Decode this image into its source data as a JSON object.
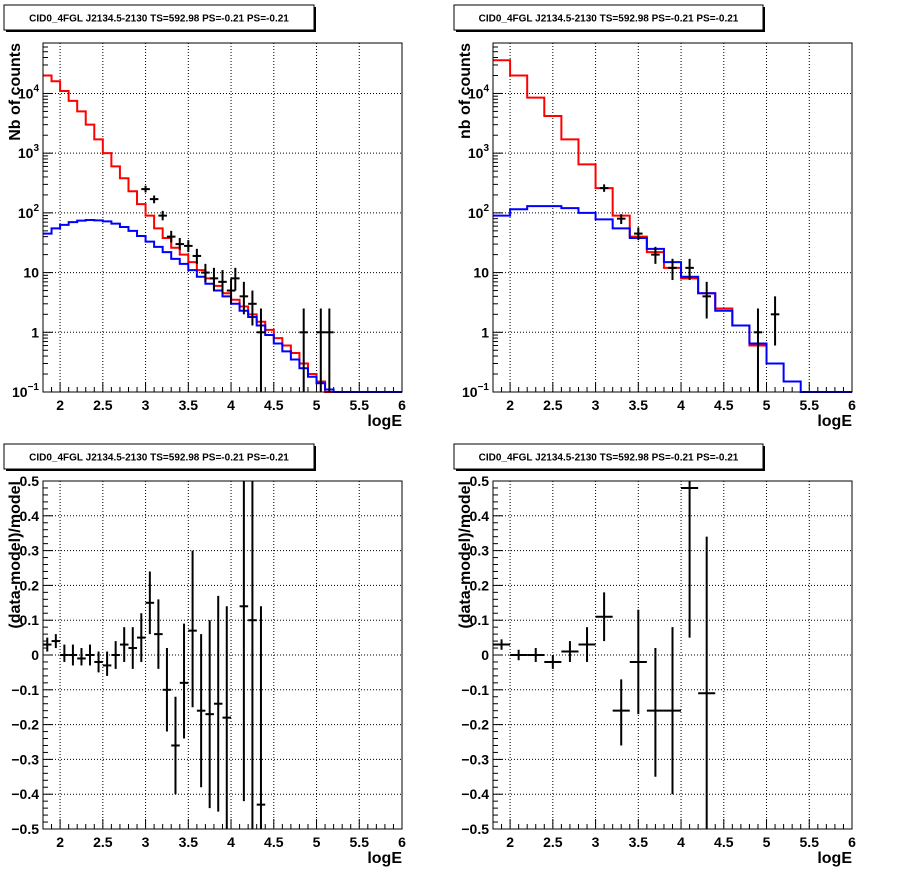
{
  "chart_data": [
    {
      "type": "line",
      "id": "counts-left",
      "title": "CID0_4FGL J2134.5-2130 TS=592.98 PS=-0.21 PS=-0.21",
      "xlabel": "logE",
      "ylabel": "Nb of counts",
      "xlim": [
        1.8,
        6
      ],
      "ylim": [
        0.1,
        70000
      ],
      "yscale": "log",
      "grid": true,
      "xticks": [
        {
          "v": 2,
          "label": "2"
        },
        {
          "v": 2.5,
          "label": "2.5"
        },
        {
          "v": 3,
          "label": "3"
        },
        {
          "v": 3.5,
          "label": "3.5"
        },
        {
          "v": 4,
          "label": "4"
        },
        {
          "v": 4.5,
          "label": "4.5"
        },
        {
          "v": 5,
          "label": "5"
        },
        {
          "v": 5.5,
          "label": "5.5"
        },
        {
          "v": 6,
          "label": "6"
        }
      ],
      "yticks": [
        {
          "v": 0.1,
          "label": "10",
          "sup": "−1"
        },
        {
          "v": 1,
          "label": "1"
        },
        {
          "v": 10,
          "label": "10"
        },
        {
          "v": 100,
          "label": "10",
          "sup": "2"
        },
        {
          "v": 1000,
          "label": "10",
          "sup": "3"
        },
        {
          "v": 10000,
          "label": "10",
          "sup": "4"
        }
      ],
      "series": [
        {
          "kind": "step",
          "color": "#ff0000",
          "edges": [
            1.8,
            1.9,
            2.0,
            2.1,
            2.2,
            2.3,
            2.4,
            2.5,
            2.6,
            2.7,
            2.8,
            2.9,
            3.0,
            3.1,
            3.2,
            3.3,
            3.4,
            3.5,
            3.6,
            3.7,
            3.8,
            3.9,
            4.0,
            4.1,
            4.2,
            4.3,
            4.4,
            4.5,
            4.6,
            4.7,
            4.8,
            4.9,
            5.0,
            5.1,
            5.2
          ],
          "values": [
            20000,
            16000,
            11000,
            7500,
            5000,
            3000,
            1700,
            1000,
            600,
            380,
            230,
            140,
            90,
            55,
            38,
            26,
            20,
            15,
            11,
            8,
            6,
            4.5,
            3.5,
            2.7,
            2,
            1.5,
            1.1,
            0.8,
            0.6,
            0.45,
            0.3,
            0.2,
            0.15,
            0.1
          ]
        },
        {
          "kind": "step",
          "color": "#0000ff",
          "edges": [
            1.8,
            1.9,
            2.0,
            2.1,
            2.2,
            2.3,
            2.4,
            2.5,
            2.6,
            2.7,
            2.8,
            2.9,
            3.0,
            3.1,
            3.2,
            3.3,
            3.4,
            3.5,
            3.6,
            3.7,
            3.8,
            3.9,
            4.0,
            4.1,
            4.2,
            4.3,
            4.4,
            4.5,
            4.6,
            4.7,
            4.8,
            4.9,
            5.0,
            5.1,
            5.2,
            5.3,
            6.0
          ],
          "values": [
            45,
            55,
            63,
            70,
            74,
            76,
            75,
            72,
            66,
            58,
            50,
            41,
            33,
            27,
            22,
            17,
            14,
            11,
            8.5,
            6.5,
            5,
            4,
            3,
            2.3,
            1.8,
            1.3,
            0.9,
            0.65,
            0.48,
            0.35,
            0.25,
            0.18,
            0.14,
            0.11,
            0.1,
            0.1
          ]
        }
      ],
      "points": [
        {
          "x": 3.0,
          "y": 250,
          "lo": 220,
          "hi": 285
        },
        {
          "x": 3.1,
          "y": 170,
          "lo": 145,
          "hi": 195
        },
        {
          "x": 3.2,
          "y": 90,
          "lo": 75,
          "hi": 108
        },
        {
          "x": 3.3,
          "y": 40,
          "lo": 32,
          "hi": 50
        },
        {
          "x": 3.4,
          "y": 30,
          "lo": 24,
          "hi": 38
        },
        {
          "x": 3.5,
          "y": 28,
          "lo": 22,
          "hi": 35
        },
        {
          "x": 3.6,
          "y": 19,
          "lo": 14,
          "hi": 25
        },
        {
          "x": 3.7,
          "y": 10,
          "lo": 7,
          "hi": 14
        },
        {
          "x": 3.8,
          "y": 8,
          "lo": 5,
          "hi": 12
        },
        {
          "x": 3.9,
          "y": 7,
          "lo": 4.5,
          "hi": 11
        },
        {
          "x": 4.0,
          "y": 5,
          "lo": 3,
          "hi": 8
        },
        {
          "x": 4.05,
          "y": 8,
          "lo": 5,
          "hi": 12
        },
        {
          "x": 4.15,
          "y": 4,
          "lo": 2,
          "hi": 7
        },
        {
          "x": 4.25,
          "y": 3,
          "lo": 1.3,
          "hi": 5
        },
        {
          "x": 4.35,
          "y": 1,
          "lo": 0.1,
          "hi": 2.5
        },
        {
          "x": 4.85,
          "y": 1,
          "lo": 0.1,
          "hi": 2.5
        },
        {
          "x": 5.05,
          "y": 1,
          "lo": 0.1,
          "hi": 2.5
        },
        {
          "x": 5.15,
          "y": 1,
          "lo": 0.1,
          "hi": 2.5
        }
      ]
    },
    {
      "type": "line",
      "id": "counts-right",
      "title": "CID0_4FGL J2134.5-2130 TS=592.98 PS=-0.21 PS=-0.21",
      "xlabel": "logE",
      "ylabel": "nb of counts",
      "xlim": [
        1.8,
        6
      ],
      "ylim": [
        0.1,
        70000
      ],
      "yscale": "log",
      "grid": true,
      "xticks": [
        {
          "v": 2,
          "label": "2"
        },
        {
          "v": 2.5,
          "label": "2.5"
        },
        {
          "v": 3,
          "label": "3"
        },
        {
          "v": 3.5,
          "label": "3.5"
        },
        {
          "v": 4,
          "label": "4"
        },
        {
          "v": 4.5,
          "label": "4.5"
        },
        {
          "v": 5,
          "label": "5"
        },
        {
          "v": 5.5,
          "label": "5.5"
        },
        {
          "v": 6,
          "label": "6"
        }
      ],
      "yticks": [
        {
          "v": 0.1,
          "label": "10",
          "sup": "−1"
        },
        {
          "v": 1,
          "label": "1"
        },
        {
          "v": 10,
          "label": "10"
        },
        {
          "v": 100,
          "label": "10",
          "sup": "2"
        },
        {
          "v": 1000,
          "label": "10",
          "sup": "3"
        },
        {
          "v": 10000,
          "label": "10",
          "sup": "4"
        }
      ],
      "series": [
        {
          "kind": "step",
          "color": "#ff0000",
          "edges": [
            1.8,
            2.0,
            2.2,
            2.4,
            2.6,
            2.8,
            3.0,
            3.2,
            3.4,
            3.6,
            3.8,
            4.0,
            4.2,
            4.4,
            4.6,
            4.8,
            5.0
          ],
          "values": [
            36000,
            20000,
            8500,
            4200,
            1700,
            650,
            260,
            90,
            40,
            22,
            12,
            8,
            4.5,
            2.5,
            1.3,
            0.6
          ]
        },
        {
          "kind": "step",
          "color": "#0000ff",
          "edges": [
            1.8,
            2.0,
            2.2,
            2.4,
            2.6,
            2.8,
            3.0,
            3.2,
            3.4,
            3.6,
            3.8,
            4.0,
            4.2,
            4.4,
            4.6,
            4.8,
            5.0,
            5.2,
            5.4,
            6.0
          ],
          "values": [
            90,
            115,
            130,
            130,
            120,
            100,
            78,
            55,
            38,
            25,
            15,
            8.5,
            4.5,
            2.3,
            1.3,
            0.65,
            0.3,
            0.15,
            0.1
          ]
        }
      ],
      "points": [
        {
          "x": 3.1,
          "y": 260,
          "lo": 225,
          "hi": 300
        },
        {
          "x": 3.3,
          "y": 80,
          "lo": 65,
          "hi": 95
        },
        {
          "x": 3.5,
          "y": 45,
          "lo": 35,
          "hi": 57
        },
        {
          "x": 3.7,
          "y": 20,
          "lo": 14,
          "hi": 27
        },
        {
          "x": 3.9,
          "y": 12,
          "lo": 7.5,
          "hi": 17
        },
        {
          "x": 4.1,
          "y": 12,
          "lo": 7.5,
          "hi": 17
        },
        {
          "x": 4.3,
          "y": 4,
          "lo": 1.7,
          "hi": 7
        },
        {
          "x": 4.9,
          "y": 1,
          "lo": 0.1,
          "hi": 2.5
        },
        {
          "x": 5.1,
          "y": 2,
          "lo": 0.6,
          "hi": 4
        }
      ]
    },
    {
      "type": "scatter",
      "id": "residuals-left",
      "title": "CID0_4FGL J2134.5-2130 TS=592.98 PS=-0.21 PS=-0.21",
      "xlabel": "logE",
      "ylabel": "(data-model)/model",
      "xlim": [
        1.8,
        6
      ],
      "ylim": [
        -0.5,
        0.5
      ],
      "grid": true,
      "xticks": [
        {
          "v": 2,
          "label": "2"
        },
        {
          "v": 2.5,
          "label": "2.5"
        },
        {
          "v": 3,
          "label": "3"
        },
        {
          "v": 3.5,
          "label": "3.5"
        },
        {
          "v": 4,
          "label": "4"
        },
        {
          "v": 4.5,
          "label": "4.5"
        },
        {
          "v": 5,
          "label": "5"
        },
        {
          "v": 5.5,
          "label": "5.5"
        },
        {
          "v": 6,
          "label": "6"
        }
      ],
      "yticks": [
        {
          "v": -0.5,
          "label": "−0.5"
        },
        {
          "v": -0.4,
          "label": "−0.4"
        },
        {
          "v": -0.3,
          "label": "−0.3"
        },
        {
          "v": -0.2,
          "label": "−0.2"
        },
        {
          "v": -0.1,
          "label": "−0.1"
        },
        {
          "v": 0,
          "label": "0"
        },
        {
          "v": 0.1,
          "label": "0.1"
        },
        {
          "v": 0.2,
          "label": "0.2"
        },
        {
          "v": 0.3,
          "label": "0.3"
        },
        {
          "v": 0.4,
          "label": "0.4"
        },
        {
          "v": 0.5,
          "label": "0.5"
        }
      ],
      "xerr": 0.05,
      "points": [
        {
          "x": 1.85,
          "y": 0.03,
          "lo": 0.01,
          "hi": 0.05
        },
        {
          "x": 1.95,
          "y": 0.04,
          "lo": 0.02,
          "hi": 0.06
        },
        {
          "x": 2.05,
          "y": 0.0,
          "lo": -0.02,
          "hi": 0.03
        },
        {
          "x": 2.15,
          "y": 0.0,
          "lo": -0.03,
          "hi": 0.03
        },
        {
          "x": 2.25,
          "y": -0.01,
          "lo": -0.03,
          "hi": 0.02
        },
        {
          "x": 2.35,
          "y": 0.0,
          "lo": -0.03,
          "hi": 0.03
        },
        {
          "x": 2.45,
          "y": -0.02,
          "lo": -0.05,
          "hi": 0.01
        },
        {
          "x": 2.55,
          "y": -0.03,
          "lo": -0.06,
          "hi": 0.01
        },
        {
          "x": 2.65,
          "y": 0.0,
          "lo": -0.04,
          "hi": 0.04
        },
        {
          "x": 2.75,
          "y": 0.03,
          "lo": -0.02,
          "hi": 0.08
        },
        {
          "x": 2.85,
          "y": 0.02,
          "lo": -0.04,
          "hi": 0.08
        },
        {
          "x": 2.95,
          "y": 0.05,
          "lo": -0.02,
          "hi": 0.12
        },
        {
          "x": 3.05,
          "y": 0.15,
          "lo": 0.06,
          "hi": 0.24
        },
        {
          "x": 3.15,
          "y": 0.06,
          "lo": -0.04,
          "hi": 0.16
        },
        {
          "x": 3.25,
          "y": -0.1,
          "lo": -0.22,
          "hi": 0.02
        },
        {
          "x": 3.35,
          "y": -0.26,
          "lo": -0.4,
          "hi": -0.12
        },
        {
          "x": 3.45,
          "y": -0.08,
          "lo": -0.24,
          "hi": 0.09
        },
        {
          "x": 3.55,
          "y": 0.07,
          "lo": -0.15,
          "hi": 0.3
        },
        {
          "x": 3.65,
          "y": -0.16,
          "lo": -0.38,
          "hi": 0.06
        },
        {
          "x": 3.75,
          "y": -0.17,
          "lo": -0.44,
          "hi": 0.1
        },
        {
          "x": 3.85,
          "y": -0.14,
          "lo": -0.45,
          "hi": 0.17
        },
        {
          "x": 3.95,
          "y": -0.18,
          "lo": -0.5,
          "hi": 0.14
        },
        {
          "x": 4.15,
          "y": 0.14,
          "lo": -0.42,
          "hi": 0.5
        },
        {
          "x": 4.25,
          "y": 0.1,
          "lo": -0.5,
          "hi": 0.5
        },
        {
          "x": 4.35,
          "y": -0.43,
          "lo": -0.5,
          "hi": 0.14
        }
      ]
    },
    {
      "type": "scatter",
      "id": "residuals-right",
      "title": "CID0_4FGL J2134.5-2130 TS=592.98 PS=-0.21 PS=-0.21",
      "xlabel": "logE",
      "ylabel": "(data-model)/model",
      "xlim": [
        1.8,
        6
      ],
      "ylim": [
        -0.5,
        0.5
      ],
      "grid": true,
      "xticks": [
        {
          "v": 2,
          "label": "2"
        },
        {
          "v": 2.5,
          "label": "2.5"
        },
        {
          "v": 3,
          "label": "3"
        },
        {
          "v": 3.5,
          "label": "3.5"
        },
        {
          "v": 4,
          "label": "4"
        },
        {
          "v": 4.5,
          "label": "4.5"
        },
        {
          "v": 5,
          "label": "5"
        },
        {
          "v": 5.5,
          "label": "5.5"
        },
        {
          "v": 6,
          "label": "6"
        }
      ],
      "yticks": [
        {
          "v": -0.5,
          "label": "−0.5"
        },
        {
          "v": -0.4,
          "label": "−0.4"
        },
        {
          "v": -0.3,
          "label": "−0.3"
        },
        {
          "v": -0.2,
          "label": "−0.2"
        },
        {
          "v": -0.1,
          "label": "−0.1"
        },
        {
          "v": 0,
          "label": "0"
        },
        {
          "v": 0.1,
          "label": "0.1"
        },
        {
          "v": 0.2,
          "label": "0.2"
        },
        {
          "v": 0.3,
          "label": "0.3"
        },
        {
          "v": 0.4,
          "label": "0.4"
        },
        {
          "v": 0.5,
          "label": "0.5"
        }
      ],
      "xerr": 0.1,
      "points": [
        {
          "x": 1.9,
          "y": 0.03,
          "lo": 0.015,
          "hi": 0.045
        },
        {
          "x": 2.1,
          "y": 0.0,
          "lo": -0.015,
          "hi": 0.015
        },
        {
          "x": 2.3,
          "y": 0.0,
          "lo": -0.02,
          "hi": 0.02
        },
        {
          "x": 2.5,
          "y": -0.02,
          "lo": -0.04,
          "hi": 0.0
        },
        {
          "x": 2.7,
          "y": 0.01,
          "lo": -0.02,
          "hi": 0.04
        },
        {
          "x": 2.9,
          "y": 0.03,
          "lo": -0.02,
          "hi": 0.08
        },
        {
          "x": 3.1,
          "y": 0.11,
          "lo": 0.04,
          "hi": 0.18
        },
        {
          "x": 3.3,
          "y": -0.16,
          "lo": -0.26,
          "hi": -0.07
        },
        {
          "x": 3.5,
          "y": -0.02,
          "lo": -0.17,
          "hi": 0.13
        },
        {
          "x": 3.7,
          "y": -0.16,
          "lo": -0.35,
          "hi": 0.02
        },
        {
          "x": 3.9,
          "y": -0.16,
          "lo": -0.4,
          "hi": 0.08
        },
        {
          "x": 4.1,
          "y": 0.48,
          "lo": 0.05,
          "hi": 0.5
        },
        {
          "x": 4.3,
          "y": -0.11,
          "lo": -0.5,
          "hi": 0.34
        }
      ]
    }
  ]
}
